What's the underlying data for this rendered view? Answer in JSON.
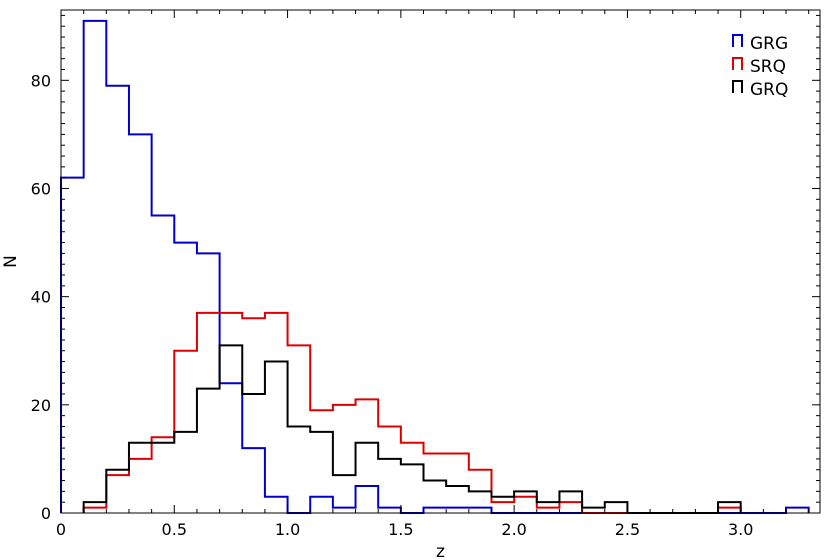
{
  "chart_data": {
    "type": "histogram",
    "title": "",
    "xlabel": "z",
    "ylabel": "N",
    "xlim": [
      0,
      3.35
    ],
    "ylim": [
      0,
      93
    ],
    "bin_width": 0.1,
    "x_ticks": [
      0,
      0.5,
      1.0,
      1.5,
      2.0,
      2.5,
      3.0
    ],
    "x_tick_labels": [
      "0",
      "0.5",
      "1.0",
      "1.5",
      "2.0",
      "2.5",
      "3.0"
    ],
    "y_ticks": [
      0,
      20,
      40,
      60,
      80
    ],
    "y_tick_labels": [
      "0",
      "20",
      "40",
      "60",
      "80"
    ],
    "grid": false,
    "legend_position": "top-right",
    "series": [
      {
        "name": "GRG",
        "color": "#0000cc",
        "bin_starts": [
          0.0,
          0.1,
          0.2,
          0.3,
          0.4,
          0.5,
          0.6,
          0.7,
          0.8,
          0.9,
          1.0,
          1.1,
          1.2,
          1.3,
          1.4,
          1.5,
          1.6,
          1.7,
          1.8,
          1.9,
          2.0,
          2.1,
          2.2,
          2.3,
          2.4,
          2.5,
          2.6,
          2.7,
          2.8,
          2.9,
          3.0,
          3.1,
          3.2
        ],
        "values": [
          62,
          91,
          79,
          70,
          55,
          50,
          48,
          24,
          12,
          3,
          0,
          3,
          1,
          5,
          1,
          0,
          1,
          1,
          1,
          0,
          0,
          0,
          0,
          0,
          0,
          0,
          0,
          0,
          0,
          0,
          0,
          0,
          1
        ]
      },
      {
        "name": "SRQ",
        "color": "#dd0000",
        "bin_starts": [
          0.1,
          0.2,
          0.3,
          0.4,
          0.5,
          0.6,
          0.7,
          0.8,
          0.9,
          1.0,
          1.1,
          1.2,
          1.3,
          1.4,
          1.5,
          1.6,
          1.7,
          1.8,
          1.9,
          2.0,
          2.1,
          2.2,
          2.3,
          2.4,
          2.5,
          2.6,
          2.7,
          2.8,
          2.9
        ],
        "values": [
          1,
          7,
          10,
          14,
          30,
          37,
          37,
          36,
          37,
          31,
          19,
          20,
          21,
          16,
          13,
          11,
          11,
          8,
          2,
          3,
          1,
          2,
          0,
          0,
          0,
          0,
          0,
          0,
          1
        ]
      },
      {
        "name": "GRQ",
        "color": "#000000",
        "bin_starts": [
          0.1,
          0.2,
          0.3,
          0.4,
          0.5,
          0.6,
          0.7,
          0.8,
          0.9,
          1.0,
          1.1,
          1.2,
          1.3,
          1.4,
          1.5,
          1.6,
          1.7,
          1.8,
          1.9,
          2.0,
          2.1,
          2.2,
          2.3,
          2.4,
          2.5,
          2.6,
          2.7,
          2.8,
          2.9
        ],
        "values": [
          2,
          8,
          13,
          13,
          15,
          23,
          31,
          22,
          28,
          16,
          15,
          7,
          13,
          10,
          9,
          6,
          5,
          4,
          3,
          4,
          2,
          4,
          1,
          2,
          0,
          0,
          0,
          0,
          2
        ]
      }
    ]
  }
}
